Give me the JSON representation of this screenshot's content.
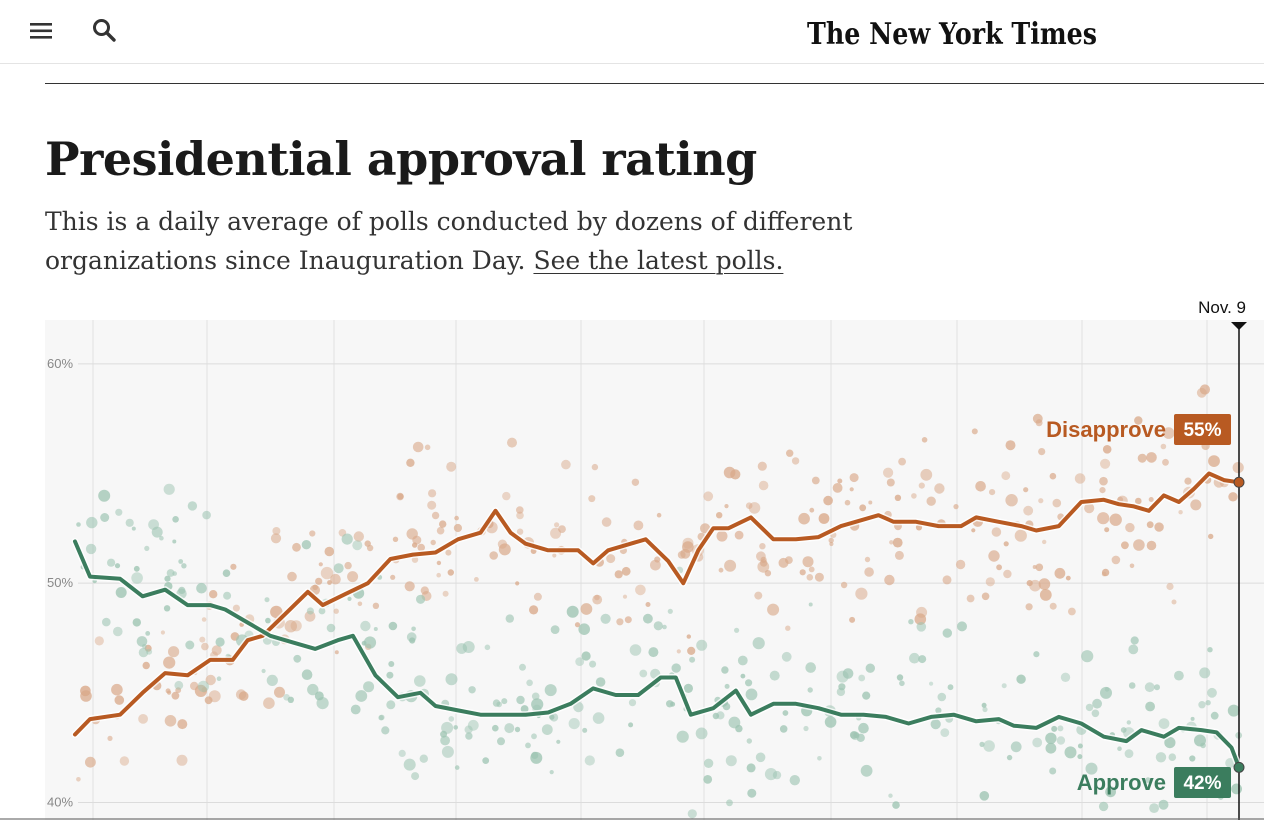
{
  "header": {
    "logo_text": "The New York Times",
    "icons": {
      "menu": "hamburger-menu-icon",
      "search": "search-icon"
    }
  },
  "article": {
    "title": "Presidential approval rating",
    "dek_text": "This is a daily average of polls conducted by dozens of different organizations since Inauguration Day. ",
    "dek_link": "See the latest polls."
  },
  "colors": {
    "disapprove": "#b85a22",
    "approve": "#3b7d5e",
    "disapprove_dot": "#d9a98a",
    "approve_dot": "#9dc4b2",
    "plot_bg": "#f7f7f7"
  },
  "chart_data": {
    "type": "line",
    "title": "Presidential approval rating",
    "x_label_end": "Nov. 9",
    "y_ticks": [
      "60%",
      "50%",
      "40%"
    ],
    "y_tick_values": [
      60,
      50,
      40
    ],
    "ylim": [
      39.2,
      62
    ],
    "x_range_days": [
      0,
      293
    ],
    "grid": true,
    "series": [
      {
        "name": "Disapprove",
        "label": "Disapprove",
        "end_label": "55%",
        "points": [
          [
            0,
            43.1
          ],
          [
            4,
            43.8
          ],
          [
            12,
            44.0
          ],
          [
            18,
            45.0
          ],
          [
            24,
            45.9
          ],
          [
            30,
            45.8
          ],
          [
            36,
            46.5
          ],
          [
            42,
            46.5
          ],
          [
            46,
            47.4
          ],
          [
            50,
            47.6
          ],
          [
            56,
            48.6
          ],
          [
            62,
            49.6
          ],
          [
            66,
            49.0
          ],
          [
            72,
            49.5
          ],
          [
            78,
            50.0
          ],
          [
            84,
            51.1
          ],
          [
            90,
            51.3
          ],
          [
            96,
            51.4
          ],
          [
            102,
            52.0
          ],
          [
            108,
            52.3
          ],
          [
            112,
            53.3
          ],
          [
            116,
            52.3
          ],
          [
            120,
            51.8
          ],
          [
            126,
            51.5
          ],
          [
            130,
            51.5
          ],
          [
            134,
            51.5
          ],
          [
            138,
            50.9
          ],
          [
            142,
            51.5
          ],
          [
            148,
            51.8
          ],
          [
            152,
            52.0
          ],
          [
            158,
            51.0
          ],
          [
            162,
            50.0
          ],
          [
            166,
            51.5
          ],
          [
            170,
            52.5
          ],
          [
            174,
            52.5
          ],
          [
            180,
            53.0
          ],
          [
            186,
            52.0
          ],
          [
            192,
            52.0
          ],
          [
            198,
            52.1
          ],
          [
            204,
            52.6
          ],
          [
            210,
            52.9
          ],
          [
            214,
            53.1
          ],
          [
            218,
            52.8
          ],
          [
            224,
            52.8
          ],
          [
            230,
            52.6
          ],
          [
            236,
            52.6
          ],
          [
            240,
            53.0
          ],
          [
            246,
            52.8
          ],
          [
            252,
            52.6
          ],
          [
            256,
            52.4
          ],
          [
            262,
            52.6
          ],
          [
            268,
            53.7
          ],
          [
            274,
            53.8
          ],
          [
            278,
            53.6
          ],
          [
            282,
            53.5
          ],
          [
            286,
            53.3
          ],
          [
            290,
            54.0
          ],
          [
            294,
            53.7
          ],
          [
            298,
            54.3
          ],
          [
            302,
            55.0
          ],
          [
            306,
            54.7
          ],
          [
            310,
            54.6
          ]
        ]
      },
      {
        "name": "Approve",
        "label": "Approve",
        "end_label": "42%",
        "points": [
          [
            0,
            51.9
          ],
          [
            4,
            50.3
          ],
          [
            12,
            50.2
          ],
          [
            18,
            49.4
          ],
          [
            24,
            49.7
          ],
          [
            30,
            49.0
          ],
          [
            36,
            49.0
          ],
          [
            40,
            48.8
          ],
          [
            46,
            48.2
          ],
          [
            52,
            47.6
          ],
          [
            58,
            47.3
          ],
          [
            64,
            47.0
          ],
          [
            70,
            47.4
          ],
          [
            74,
            47.6
          ],
          [
            80,
            45.8
          ],
          [
            86,
            44.8
          ],
          [
            92,
            45.0
          ],
          [
            96,
            44.4
          ],
          [
            102,
            44.2
          ],
          [
            108,
            44.0
          ],
          [
            114,
            44.0
          ],
          [
            120,
            44.0
          ],
          [
            126,
            44.1
          ],
          [
            132,
            44.5
          ],
          [
            138,
            45.2
          ],
          [
            144,
            44.9
          ],
          [
            150,
            44.9
          ],
          [
            156,
            45.7
          ],
          [
            160,
            45.7
          ],
          [
            164,
            44.0
          ],
          [
            170,
            44.3
          ],
          [
            176,
            45.1
          ],
          [
            180,
            44.0
          ],
          [
            186,
            44.5
          ],
          [
            192,
            44.5
          ],
          [
            198,
            44.3
          ],
          [
            204,
            44.0
          ],
          [
            210,
            44.0
          ],
          [
            216,
            43.9
          ],
          [
            222,
            43.6
          ],
          [
            228,
            43.9
          ],
          [
            234,
            44.0
          ],
          [
            240,
            43.7
          ],
          [
            246,
            43.8
          ],
          [
            250,
            43.5
          ],
          [
            256,
            43.4
          ],
          [
            262,
            43.9
          ],
          [
            268,
            43.6
          ],
          [
            274,
            43.0
          ],
          [
            280,
            42.8
          ],
          [
            284,
            43.3
          ],
          [
            290,
            43.0
          ],
          [
            294,
            43.4
          ],
          [
            300,
            43.3
          ],
          [
            304,
            43.2
          ],
          [
            308,
            42.5
          ],
          [
            310,
            41.6
          ]
        ]
      }
    ]
  }
}
